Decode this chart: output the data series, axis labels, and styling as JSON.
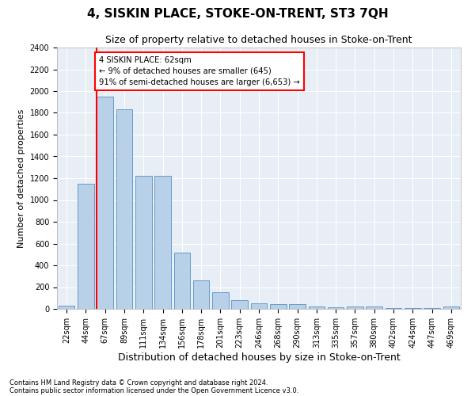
{
  "title": "4, SISKIN PLACE, STOKE-ON-TRENT, ST3 7QH",
  "subtitle": "Size of property relative to detached houses in Stoke-on-Trent",
  "xlabel": "Distribution of detached houses by size in Stoke-on-Trent",
  "ylabel": "Number of detached properties",
  "categories": [
    "22sqm",
    "44sqm",
    "67sqm",
    "89sqm",
    "111sqm",
    "134sqm",
    "156sqm",
    "178sqm",
    "201sqm",
    "223sqm",
    "246sqm",
    "268sqm",
    "290sqm",
    "313sqm",
    "335sqm",
    "357sqm",
    "380sqm",
    "402sqm",
    "424sqm",
    "447sqm",
    "469sqm"
  ],
  "values": [
    30,
    1150,
    1950,
    1830,
    1220,
    1220,
    515,
    265,
    150,
    80,
    50,
    45,
    45,
    25,
    15,
    20,
    20,
    5,
    5,
    5,
    20
  ],
  "bar_color": "#b8d0e8",
  "bar_edge_color": "#6699cc",
  "property_line_color": "red",
  "annotation_text": "4 SISKIN PLACE: 62sqm\n← 9% of detached houses are smaller (645)\n91% of semi-detached houses are larger (6,653) →",
  "ylim": [
    0,
    2400
  ],
  "yticks": [
    0,
    200,
    400,
    600,
    800,
    1000,
    1200,
    1400,
    1600,
    1800,
    2000,
    2200,
    2400
  ],
  "footnote1": "Contains HM Land Registry data © Crown copyright and database right 2024.",
  "footnote2": "Contains public sector information licensed under the Open Government Licence v3.0.",
  "title_fontsize": 11,
  "subtitle_fontsize": 9,
  "xlabel_fontsize": 9,
  "ylabel_fontsize": 8,
  "tick_fontsize": 7,
  "background_color": "#ffffff",
  "plot_bg_color": "#e8eef5"
}
